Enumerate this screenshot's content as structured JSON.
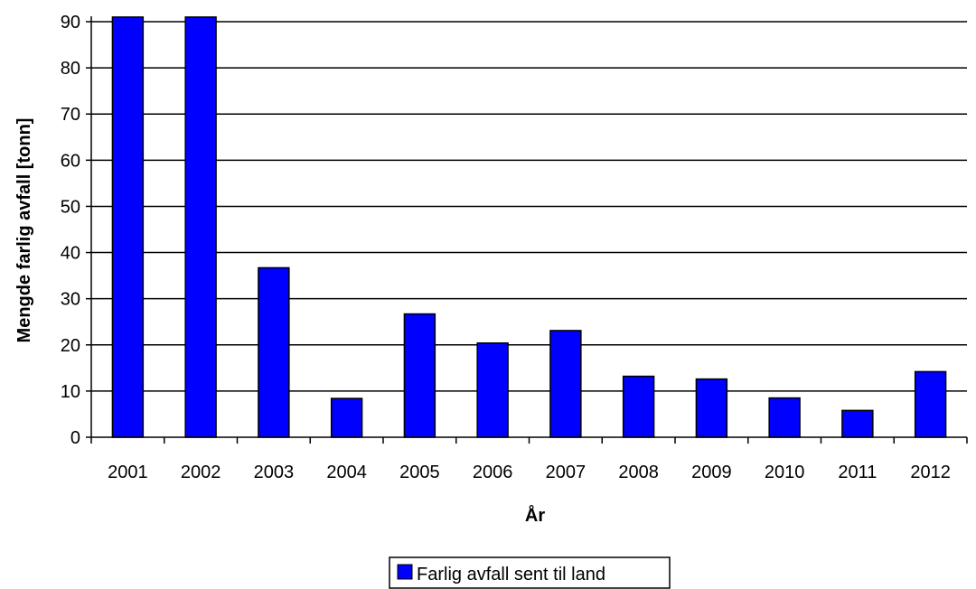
{
  "chart_data": {
    "type": "bar",
    "categories": [
      "2001",
      "2002",
      "2003",
      "2004",
      "2005",
      "2006",
      "2007",
      "2008",
      "2009",
      "2010",
      "2011",
      "2012"
    ],
    "series": [
      {
        "name": "Farlig avfall sent til land",
        "values": [
          91,
          91,
          36.7,
          8.4,
          26.7,
          20.4,
          23.1,
          13.2,
          12.6,
          8.5,
          5.8,
          14.2
        ],
        "color": "#0000ff"
      }
    ],
    "title": "",
    "xlabel": "År",
    "ylabel": "Mengde farlig avfall [tonn]",
    "ylim": [
      0,
      90
    ],
    "yticks": [
      0,
      10,
      20,
      30,
      40,
      50,
      60,
      70,
      80,
      90
    ],
    "grid": true,
    "legend_position": "bottom-center",
    "clipped_above_axis": true
  }
}
